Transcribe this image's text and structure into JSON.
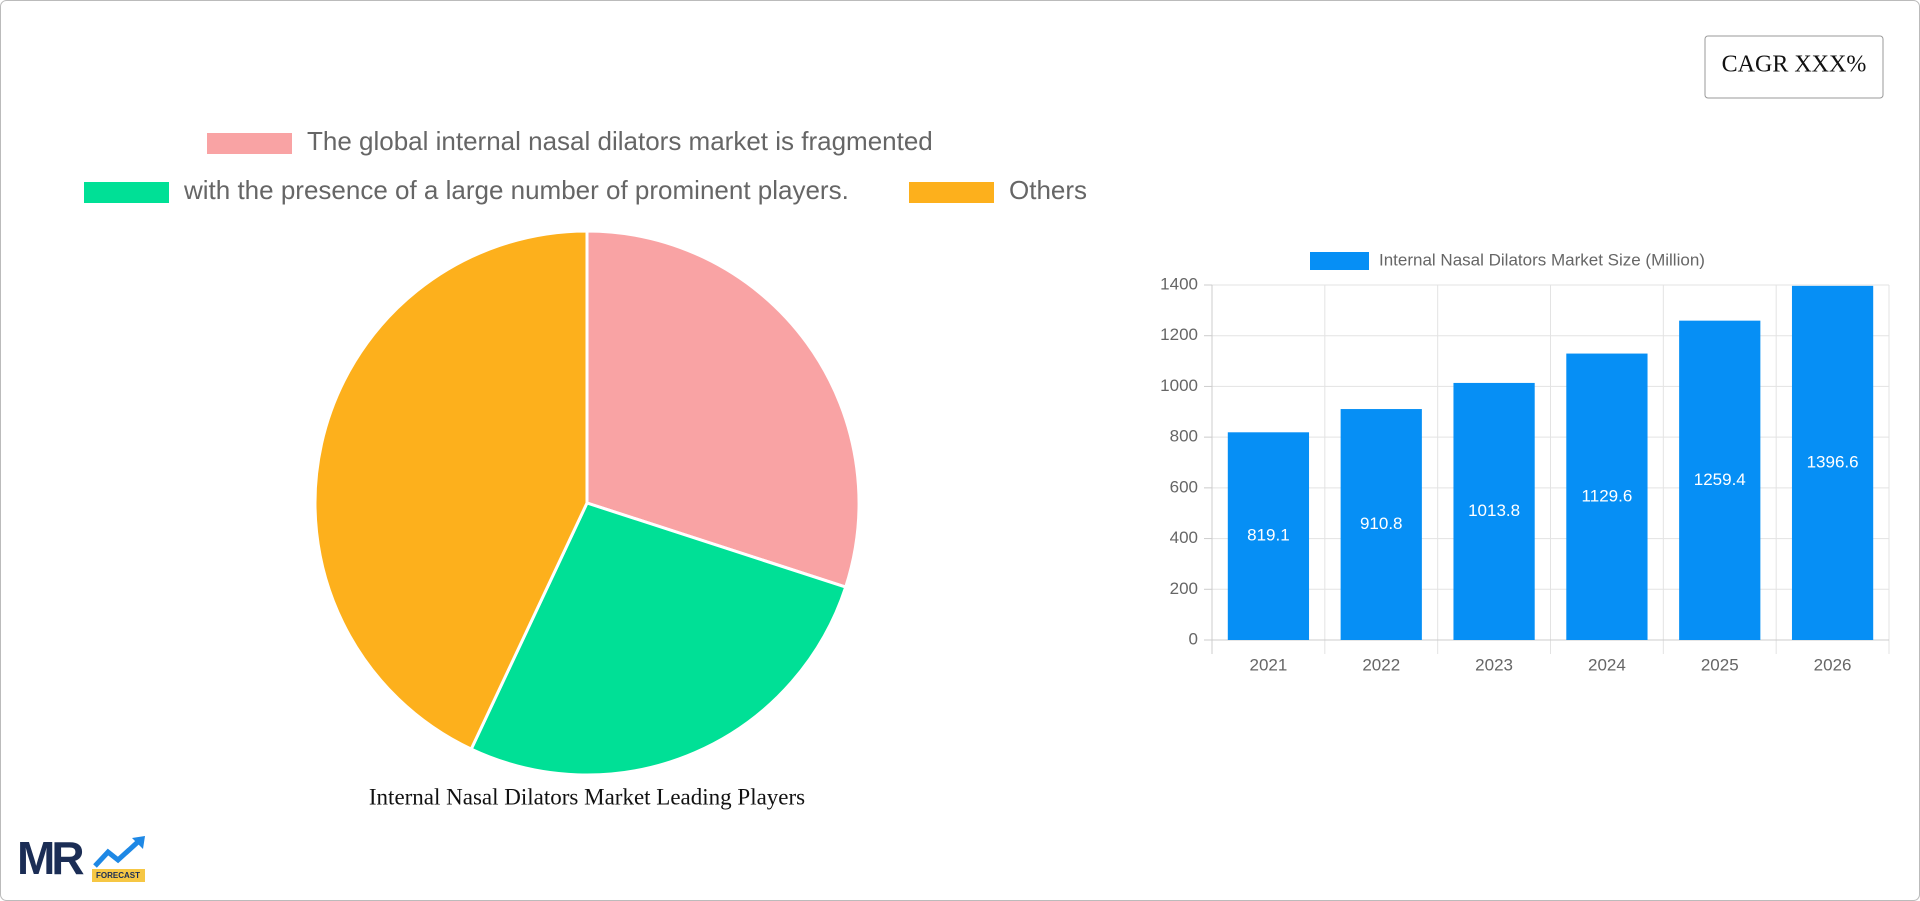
{
  "cagr_badge": "CAGR XXX%",
  "logo": {
    "mark": "MR",
    "tag": "FORECAST"
  },
  "chart_data": [
    {
      "type": "pie",
      "title": "Internal Nasal Dilators Market Leading Players",
      "categories": [
        "The global internal nasal dilators market is fragmented",
        "with the presence of a large number of prominent players.",
        "Others"
      ],
      "values": [
        30,
        27,
        43
      ],
      "colors": [
        "#f9a3a4",
        "#00e096",
        "#fdb01c"
      ]
    },
    {
      "type": "bar",
      "categories": [
        "2021",
        "2022",
        "2023",
        "2024",
        "2025",
        "2026"
      ],
      "series": [
        {
          "name": "Internal Nasal Dilators Market Size (Million)",
          "color": "#068ff5",
          "values": [
            819.1,
            910.8,
            1013.8,
            1129.6,
            1259.4,
            1396.6
          ]
        }
      ],
      "ylim": [
        0,
        1400
      ],
      "yticks": [
        0,
        200,
        400,
        600,
        800,
        1000,
        1200,
        1400
      ],
      "grid": true
    }
  ]
}
